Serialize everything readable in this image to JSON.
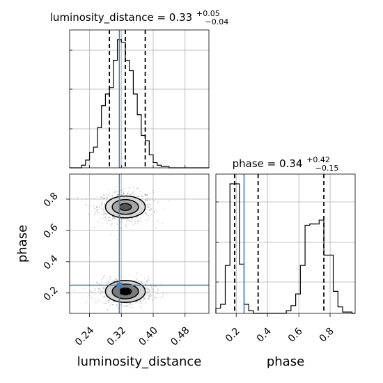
{
  "colors": {
    "truth": "#4682b4",
    "grid": "#b0b0b0",
    "samples": "#7f7f7f",
    "ink": "#000000"
  },
  "titles": {
    "luminosity": {
      "main": "luminosity_distance = 0.33",
      "sup": "+0.05",
      "sub": "−0.04"
    },
    "phase": {
      "main": "phase = 0.34",
      "sup": "+0.42",
      "sub": "−0.15"
    }
  },
  "labels": {
    "x_luminosity": "luminosity_distance",
    "x_phase": "phase",
    "y_phase": "phase"
  },
  "chart_data": [
    {
      "type": "bar",
      "panel": "luminosity_distance-histogram",
      "x_range": [
        0.19,
        0.54
      ],
      "bin_edges": [
        0.19,
        0.2,
        0.21,
        0.22,
        0.23,
        0.24,
        0.25,
        0.26,
        0.27,
        0.28,
        0.29,
        0.3,
        0.31,
        0.32,
        0.33,
        0.34,
        0.35,
        0.36,
        0.37,
        0.38,
        0.39,
        0.4,
        0.41,
        0.42,
        0.43,
        0.44,
        0.45,
        0.46,
        0.47,
        0.48,
        0.49,
        0.5,
        0.51,
        0.52,
        0.53,
        0.54
      ],
      "counts": [
        0,
        0,
        0,
        0.02,
        0.06,
        0.12,
        0.16,
        0.31,
        0.48,
        0.57,
        0.62,
        0.83,
        0.99,
        0.97,
        0.83,
        0.75,
        0.57,
        0.41,
        0.25,
        0.21,
        0.1,
        0.04,
        0.02,
        0.01,
        0.01,
        0,
        0,
        0,
        0,
        0,
        0,
        0,
        0,
        0,
        0
      ],
      "quantiles": [
        0.29,
        0.33,
        0.38
      ],
      "truth": 0.315,
      "grid": true
    },
    {
      "type": "bar",
      "panel": "phase-histogram",
      "x_range": [
        0.07,
        0.96
      ],
      "bin_edges": [
        0.07,
        0.1,
        0.13,
        0.16,
        0.19,
        0.22,
        0.25,
        0.28,
        0.31,
        0.34,
        0.37,
        0.4,
        0.43,
        0.46,
        0.49,
        0.52,
        0.55,
        0.58,
        0.61,
        0.64,
        0.67,
        0.7,
        0.73,
        0.76,
        0.79,
        0.82,
        0.85,
        0.88,
        0.91,
        0.94,
        0.96
      ],
      "counts": [
        0.04,
        0.07,
        0.37,
        1.0,
        1.0,
        0.38,
        0.07,
        0.02,
        0,
        0,
        0,
        0,
        0,
        0,
        0,
        0.02,
        0.06,
        0.15,
        0.37,
        0.68,
        0.69,
        0.69,
        0.72,
        0.45,
        0.45,
        0.17,
        0.05,
        0.01,
        0.01,
        0
      ],
      "quantiles": [
        0.19,
        0.34,
        0.76
      ],
      "truth": 0.25,
      "grid": true
    },
    {
      "type": "scatter",
      "panel": "luminosity_distance-vs-phase",
      "x_range": [
        0.19,
        0.54
      ],
      "y_range": [
        0.07,
        0.96
      ],
      "xlabel": "luminosity_distance",
      "ylabel": "phase",
      "x_ticks": [
        0.24,
        0.32,
        0.4,
        0.48
      ],
      "y_ticks": [
        0.2,
        0.4,
        0.6,
        0.8
      ],
      "truth": {
        "x": 0.315,
        "y": 0.25
      },
      "modes": [
        {
          "cx": 0.33,
          "cy": 0.75,
          "sx": 0.03,
          "sy": 0.045,
          "density": 0.5
        },
        {
          "cx": 0.33,
          "cy": 0.21,
          "sx": 0.03,
          "sy": 0.035,
          "density": 0.9
        }
      ],
      "contour_levels": [
        {
          "rx": 0.015,
          "ry": 0.022
        },
        {
          "rx": 0.033,
          "ry": 0.047
        },
        {
          "rx": 0.05,
          "ry": 0.07
        }
      ]
    }
  ],
  "tick_labels": {
    "lum_x": [
      "0.24",
      "0.32",
      "0.40",
      "0.48"
    ],
    "phase_x": [
      "0.2",
      "0.4",
      "0.6",
      "0.8"
    ],
    "phase_y": [
      "0.2",
      "0.4",
      "0.6",
      "0.8"
    ]
  }
}
